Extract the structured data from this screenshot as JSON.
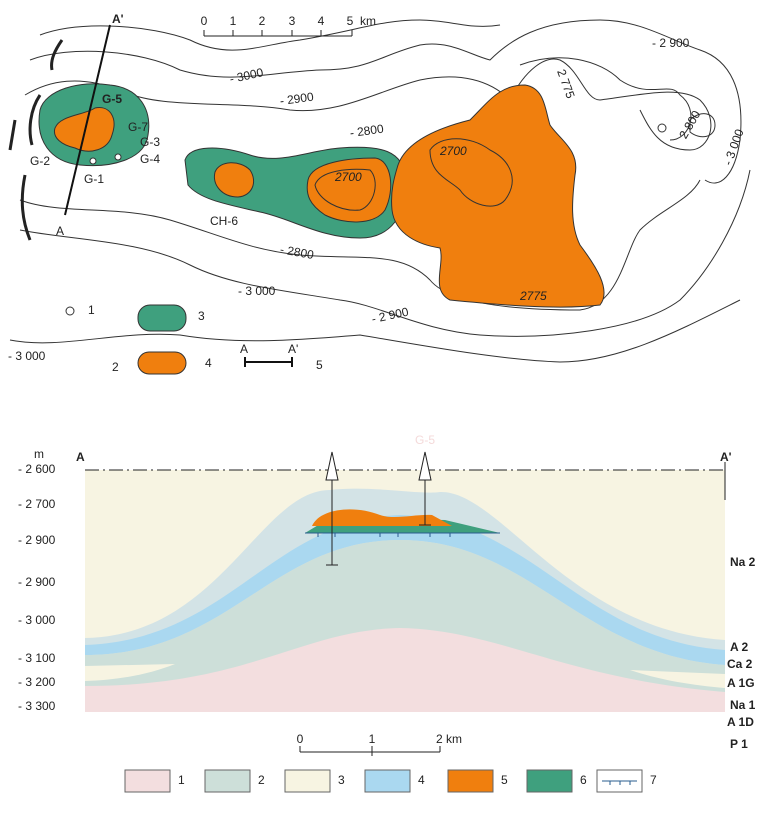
{
  "map": {
    "section_line": {
      "start": "A",
      "end": "A'"
    },
    "scale": {
      "ticks": [
        "0",
        "1",
        "2",
        "3",
        "4",
        "5"
      ],
      "unit": "km"
    },
    "contours": [
      "- 3000",
      "- 2900",
      "- 2800",
      "- 2 900",
      "2 775",
      "2 800",
      "- 3 000",
      "2700",
      "2700",
      "- 2800",
      "- 3 000",
      "2775",
      "- 2 900",
      "- 3 000"
    ],
    "wells": [
      "G-5",
      "G-7",
      "G-3",
      "G-4",
      "G-2",
      "G-1",
      "CH-6"
    ],
    "legend": [
      "1",
      "2",
      "3",
      "4",
      "5"
    ],
    "legend_section": {
      "start": "A",
      "end": "A'"
    }
  },
  "section": {
    "unit": "m",
    "start": "A",
    "end": "A'",
    "well": "G-5",
    "depths": [
      "- 2 600",
      "- 2 700",
      "- 2 900",
      "- 2 900",
      "- 3 000",
      "- 3 100",
      "- 3 200",
      "- 3 300"
    ],
    "layers": [
      "Na 2",
      "A 2",
      "Ca 2",
      "A 1G",
      "Na 1",
      "A 1D",
      "P 1"
    ],
    "scale": {
      "ticks": [
        "0",
        "1",
        "2 km"
      ]
    }
  },
  "legend": [
    "1",
    "2",
    "3",
    "4",
    "5",
    "6",
    "7"
  ]
}
